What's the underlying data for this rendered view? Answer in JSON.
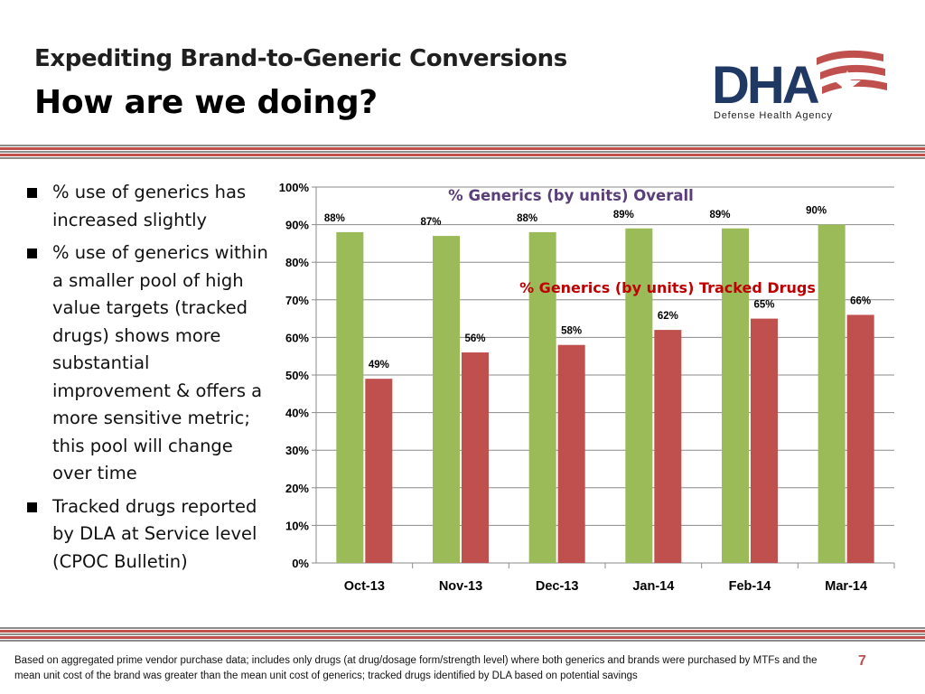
{
  "slide": {
    "title": "Expediting Brand-to-Generic Conversions",
    "subtitle": "How are we doing?",
    "page_number": "7",
    "footnote": "Based on aggregated prime vendor purchase data; includes only drugs (at drug/dosage form/strength level) where both generics and brands were purchased by MTFs and the mean unit cost of the brand was greater than the mean unit cost of generics; tracked drugs identified by DLA based on potential savings"
  },
  "logo": {
    "letters": "DHA",
    "tagline": "Defense Health Agency"
  },
  "bullets": [
    {
      "icon": "square-bullet-icon",
      "text": "% use of generics has increased slightly"
    },
    {
      "icon": "square-bullet-icon",
      "text": "% use of generics within a smaller pool of high value targets (tracked drugs) shows more substantial improvement & offers a more sensitive metric;  this pool will change over time"
    },
    {
      "icon": "square-bullet-icon",
      "text": "Tracked drugs reported by DLA at Service level (CPOC Bulletin)"
    }
  ],
  "chart_data": {
    "type": "bar",
    "categories": [
      "Oct-13",
      "Nov-13",
      "Dec-13",
      "Jan-14",
      "Feb-14",
      "Mar-14"
    ],
    "series": [
      {
        "name": "% Generics (by units) Overall",
        "values": [
          88,
          87,
          88,
          89,
          89,
          90
        ],
        "labels": [
          "88%",
          "87%",
          "88%",
          "89%",
          "89%",
          "90%"
        ],
        "color": "#9bbb59",
        "label_color": "#5a3e7a"
      },
      {
        "name": "% Generics (by units) Tracked Drugs",
        "values": [
          49,
          56,
          58,
          62,
          65,
          66
        ],
        "labels": [
          "49%",
          "56%",
          "58%",
          "62%",
          "65%",
          "66%"
        ],
        "color": "#c0504d",
        "label_color": "#c00000"
      }
    ],
    "yticks": [
      "0%",
      "10%",
      "20%",
      "30%",
      "40%",
      "50%",
      "60%",
      "70%",
      "80%",
      "90%",
      "100%"
    ],
    "ylim": [
      0,
      100
    ],
    "grid": true,
    "legend": "inline labels over the plot"
  },
  "colors": {
    "stripe_dark": "#7f7f7f",
    "stripe_red": "#c0504d",
    "logo_navy": "#1f3864",
    "accent_red": "#c0504d"
  }
}
